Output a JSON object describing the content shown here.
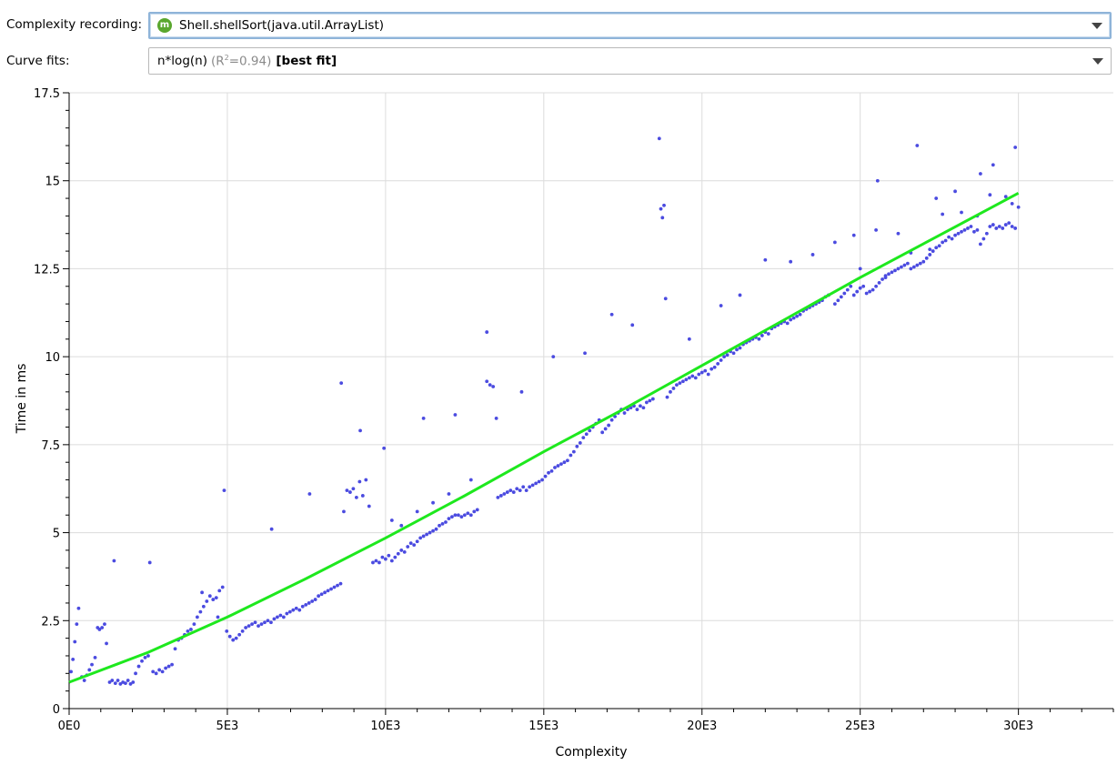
{
  "toolbar": {
    "recording_label": "Complexity recording:",
    "recording_value": "Shell.shellSort(java.util.ArrayList)",
    "recording_icon": "m-icon",
    "curvefit_label": "Curve fits:",
    "curvefit_name": "n*log(n)",
    "curvefit_r2_prefix": "(R",
    "curvefit_r2_exp": "2",
    "curvefit_r2_value": "=0.94)",
    "curvefit_tag": "[best fit]"
  },
  "chart_data": {
    "type": "scatter",
    "xlabel": "Complexity",
    "ylabel": "Time in ms",
    "xlim": [
      0,
      33000
    ],
    "ylim": [
      0,
      17.5
    ],
    "x_ticks": [
      0,
      5000,
      10000,
      15000,
      20000,
      25000,
      30000
    ],
    "x_tick_labels": [
      "0E0",
      "5E3",
      "10E3",
      "15E3",
      "20E3",
      "25E3",
      "30E3"
    ],
    "y_ticks": [
      0,
      2.5,
      5,
      7.5,
      10,
      12.5,
      15,
      17.5
    ],
    "y_tick_labels": [
      "0",
      "2.5",
      "5",
      "7.5",
      "10",
      "12.5",
      "15",
      "17.5"
    ],
    "grid": true,
    "colors": {
      "points": "#4b4be0",
      "fit": "#1ee81e"
    },
    "fit_line": {
      "x": [
        0,
        2500,
        5000,
        7500,
        10000,
        12500,
        15000,
        17500,
        20000,
        22500,
        25000,
        27500,
        30000
      ],
      "y": [
        0.75,
        1.6,
        2.6,
        3.7,
        4.85,
        6.05,
        7.3,
        8.5,
        9.75,
        11.0,
        12.25,
        13.45,
        14.65
      ]
    },
    "points": [
      [
        60,
        1.05
      ],
      [
        120,
        1.4
      ],
      [
        180,
        1.9
      ],
      [
        240,
        2.4
      ],
      [
        300,
        2.85
      ],
      [
        400,
        0.9
      ],
      [
        480,
        0.8
      ],
      [
        560,
        0.95
      ],
      [
        640,
        1.1
      ],
      [
        720,
        1.25
      ],
      [
        820,
        1.45
      ],
      [
        900,
        2.3
      ],
      [
        960,
        2.25
      ],
      [
        1040,
        2.3
      ],
      [
        1120,
        2.4
      ],
      [
        1180,
        1.85
      ],
      [
        1280,
        0.75
      ],
      [
        1360,
        0.8
      ],
      [
        1460,
        0.72
      ],
      [
        1540,
        0.8
      ],
      [
        1620,
        0.7
      ],
      [
        1700,
        0.75
      ],
      [
        1780,
        0.72
      ],
      [
        1860,
        0.8
      ],
      [
        1940,
        0.7
      ],
      [
        2020,
        0.75
      ],
      [
        2100,
        1.0
      ],
      [
        2200,
        1.2
      ],
      [
        2300,
        1.35
      ],
      [
        2400,
        1.45
      ],
      [
        2500,
        1.5
      ],
      [
        2650,
        1.05
      ],
      [
        2750,
        1.0
      ],
      [
        2850,
        1.1
      ],
      [
        2950,
        1.05
      ],
      [
        3050,
        1.15
      ],
      [
        3150,
        1.2
      ],
      [
        3250,
        1.25
      ],
      [
        3350,
        1.7
      ],
      [
        3450,
        1.95
      ],
      [
        3550,
        2.0
      ],
      [
        3650,
        2.1
      ],
      [
        3750,
        2.2
      ],
      [
        3850,
        2.25
      ],
      [
        3950,
        2.4
      ],
      [
        4050,
        2.6
      ],
      [
        4150,
        2.75
      ],
      [
        4250,
        2.9
      ],
      [
        4350,
        3.05
      ],
      [
        4450,
        3.2
      ],
      [
        4550,
        3.1
      ],
      [
        4650,
        3.15
      ],
      [
        4750,
        3.35
      ],
      [
        4850,
        3.45
      ],
      [
        1420,
        4.2
      ],
      [
        2550,
        4.15
      ],
      [
        4200,
        3.3
      ],
      [
        4700,
        2.6
      ],
      [
        4900,
        6.2
      ],
      [
        6400,
        5.1
      ],
      [
        7600,
        6.1
      ],
      [
        8600,
        9.25
      ],
      [
        9200,
        7.9
      ],
      [
        9950,
        7.4
      ],
      [
        11200,
        8.25
      ],
      [
        12200,
        8.35
      ],
      [
        13200,
        10.7
      ],
      [
        14300,
        9.0
      ],
      [
        15300,
        10.0
      ],
      [
        16300,
        10.1
      ],
      [
        17150,
        11.2
      ],
      [
        17800,
        10.9
      ],
      [
        18650,
        16.2
      ],
      [
        18700,
        14.2
      ],
      [
        18750,
        13.95
      ],
      [
        18800,
        14.3
      ],
      [
        18850,
        11.65
      ],
      [
        19600,
        10.5
      ],
      [
        20600,
        11.45
      ],
      [
        21200,
        11.75
      ],
      [
        22000,
        12.75
      ],
      [
        22800,
        12.7
      ],
      [
        23500,
        12.9
      ],
      [
        24200,
        13.25
      ],
      [
        24800,
        13.45
      ],
      [
        25500,
        13.6
      ],
      [
        25550,
        15.0
      ],
      [
        26200,
        13.5
      ],
      [
        26800,
        16.0
      ],
      [
        27400,
        14.5
      ],
      [
        28000,
        14.7
      ],
      [
        28800,
        15.2
      ],
      [
        29200,
        15.45
      ],
      [
        29900,
        15.95
      ],
      [
        4980,
        2.2
      ],
      [
        5080,
        2.05
      ],
      [
        5180,
        1.95
      ],
      [
        5280,
        2.0
      ],
      [
        5380,
        2.1
      ],
      [
        5480,
        2.2
      ],
      [
        5580,
        2.3
      ],
      [
        5680,
        2.35
      ],
      [
        5780,
        2.4
      ],
      [
        5880,
        2.45
      ],
      [
        5980,
        2.35
      ],
      [
        6080,
        2.4
      ],
      [
        6180,
        2.45
      ],
      [
        6280,
        2.5
      ],
      [
        6380,
        2.45
      ],
      [
        6480,
        2.55
      ],
      [
        6580,
        2.6
      ],
      [
        6680,
        2.65
      ],
      [
        6780,
        2.6
      ],
      [
        6880,
        2.7
      ],
      [
        6980,
        2.75
      ],
      [
        7080,
        2.8
      ],
      [
        7180,
        2.85
      ],
      [
        7280,
        2.8
      ],
      [
        7380,
        2.9
      ],
      [
        7480,
        2.95
      ],
      [
        7580,
        3.0
      ],
      [
        7680,
        3.05
      ],
      [
        7780,
        3.1
      ],
      [
        7880,
        3.2
      ],
      [
        7980,
        3.25
      ],
      [
        8080,
        3.3
      ],
      [
        8180,
        3.35
      ],
      [
        8280,
        3.4
      ],
      [
        8380,
        3.45
      ],
      [
        8480,
        3.5
      ],
      [
        8580,
        3.55
      ],
      [
        8680,
        5.6
      ],
      [
        8780,
        6.2
      ],
      [
        8880,
        6.15
      ],
      [
        8980,
        6.25
      ],
      [
        9080,
        6.0
      ],
      [
        9180,
        6.45
      ],
      [
        9280,
        6.05
      ],
      [
        9380,
        6.5
      ],
      [
        9480,
        5.75
      ],
      [
        9600,
        4.15
      ],
      [
        9700,
        4.2
      ],
      [
        9800,
        4.15
      ],
      [
        9900,
        4.3
      ],
      [
        10000,
        4.25
      ],
      [
        10100,
        4.35
      ],
      [
        10200,
        4.2
      ],
      [
        10300,
        4.3
      ],
      [
        10400,
        4.4
      ],
      [
        10500,
        4.5
      ],
      [
        10600,
        4.45
      ],
      [
        10700,
        4.6
      ],
      [
        10800,
        4.7
      ],
      [
        10900,
        4.65
      ],
      [
        11000,
        4.75
      ],
      [
        11100,
        4.85
      ],
      [
        11200,
        4.9
      ],
      [
        11300,
        4.95
      ],
      [
        11400,
        5.0
      ],
      [
        11500,
        5.05
      ],
      [
        11600,
        5.1
      ],
      [
        11700,
        5.2
      ],
      [
        11800,
        5.25
      ],
      [
        11900,
        5.3
      ],
      [
        12000,
        5.4
      ],
      [
        12100,
        5.45
      ],
      [
        12200,
        5.5
      ],
      [
        12300,
        5.5
      ],
      [
        12400,
        5.45
      ],
      [
        12500,
        5.5
      ],
      [
        12600,
        5.55
      ],
      [
        12700,
        5.5
      ],
      [
        12800,
        5.6
      ],
      [
        12900,
        5.65
      ],
      [
        10200,
        5.35
      ],
      [
        10500,
        5.2
      ],
      [
        11000,
        5.6
      ],
      [
        11500,
        5.85
      ],
      [
        12000,
        6.1
      ],
      [
        12700,
        6.5
      ],
      [
        13200,
        9.3
      ],
      [
        13300,
        9.2
      ],
      [
        13400,
        9.15
      ],
      [
        13500,
        8.25
      ],
      [
        13550,
        6.0
      ],
      [
        13650,
        6.05
      ],
      [
        13750,
        6.1
      ],
      [
        13850,
        6.15
      ],
      [
        13950,
        6.2
      ],
      [
        14050,
        6.15
      ],
      [
        14150,
        6.25
      ],
      [
        14250,
        6.2
      ],
      [
        14350,
        6.3
      ],
      [
        14450,
        6.2
      ],
      [
        14550,
        6.3
      ],
      [
        14650,
        6.35
      ],
      [
        14750,
        6.4
      ],
      [
        14850,
        6.45
      ],
      [
        14950,
        6.5
      ],
      [
        15050,
        6.6
      ],
      [
        15150,
        6.7
      ],
      [
        15250,
        6.75
      ],
      [
        15350,
        6.85
      ],
      [
        15450,
        6.9
      ],
      [
        15550,
        6.95
      ],
      [
        15650,
        7.0
      ],
      [
        15750,
        7.05
      ],
      [
        15850,
        7.2
      ],
      [
        15950,
        7.3
      ],
      [
        16050,
        7.45
      ],
      [
        16150,
        7.55
      ],
      [
        16250,
        7.7
      ],
      [
        16350,
        7.8
      ],
      [
        16450,
        7.9
      ],
      [
        16550,
        8.0
      ],
      [
        16650,
        8.1
      ],
      [
        16750,
        8.2
      ],
      [
        16850,
        7.85
      ],
      [
        16950,
        7.95
      ],
      [
        17050,
        8.05
      ],
      [
        17150,
        8.2
      ],
      [
        17250,
        8.3
      ],
      [
        17350,
        8.4
      ],
      [
        17450,
        8.5
      ],
      [
        17550,
        8.4
      ],
      [
        17650,
        8.5
      ],
      [
        17750,
        8.55
      ],
      [
        17850,
        8.6
      ],
      [
        17950,
        8.5
      ],
      [
        18050,
        8.6
      ],
      [
        18150,
        8.55
      ],
      [
        18250,
        8.7
      ],
      [
        18350,
        8.75
      ],
      [
        18450,
        8.8
      ],
      [
        18900,
        8.85
      ],
      [
        19000,
        9.0
      ],
      [
        19100,
        9.1
      ],
      [
        19200,
        9.2
      ],
      [
        19300,
        9.25
      ],
      [
        19400,
        9.3
      ],
      [
        19500,
        9.35
      ],
      [
        19600,
        9.4
      ],
      [
        19700,
        9.45
      ],
      [
        19800,
        9.4
      ],
      [
        19900,
        9.5
      ],
      [
        20000,
        9.55
      ],
      [
        20100,
        9.6
      ],
      [
        20200,
        9.5
      ],
      [
        20300,
        9.65
      ],
      [
        20400,
        9.7
      ],
      [
        20500,
        9.8
      ],
      [
        20600,
        9.9
      ],
      [
        20700,
        10.0
      ],
      [
        20800,
        10.05
      ],
      [
        20900,
        10.15
      ],
      [
        21000,
        10.1
      ],
      [
        21100,
        10.2
      ],
      [
        21200,
        10.25
      ],
      [
        21300,
        10.35
      ],
      [
        21400,
        10.4
      ],
      [
        21500,
        10.45
      ],
      [
        21600,
        10.5
      ],
      [
        21700,
        10.55
      ],
      [
        21800,
        10.5
      ],
      [
        21900,
        10.6
      ],
      [
        22000,
        10.7
      ],
      [
        22100,
        10.65
      ],
      [
        22200,
        10.8
      ],
      [
        22300,
        10.85
      ],
      [
        22400,
        10.9
      ],
      [
        22500,
        10.95
      ],
      [
        22600,
        11.0
      ],
      [
        22700,
        10.95
      ],
      [
        22800,
        11.05
      ],
      [
        22900,
        11.1
      ],
      [
        23000,
        11.15
      ],
      [
        23100,
        11.2
      ],
      [
        23200,
        11.3
      ],
      [
        23300,
        11.35
      ],
      [
        23400,
        11.4
      ],
      [
        23500,
        11.45
      ],
      [
        23600,
        11.5
      ],
      [
        23700,
        11.55
      ],
      [
        23800,
        11.6
      ],
      [
        23900,
        11.7
      ],
      [
        24000,
        11.75
      ],
      [
        24200,
        11.5
      ],
      [
        24300,
        11.6
      ],
      [
        24400,
        11.7
      ],
      [
        24500,
        11.8
      ],
      [
        24600,
        11.9
      ],
      [
        24700,
        12.0
      ],
      [
        24800,
        11.75
      ],
      [
        24900,
        11.85
      ],
      [
        25000,
        11.95
      ],
      [
        25100,
        12.0
      ],
      [
        25200,
        11.8
      ],
      [
        25300,
        11.85
      ],
      [
        25400,
        11.9
      ],
      [
        25500,
        12.0
      ],
      [
        25600,
        12.1
      ],
      [
        25700,
        12.2
      ],
      [
        25800,
        12.25
      ],
      [
        25900,
        12.35
      ],
      [
        26000,
        12.4
      ],
      [
        26100,
        12.45
      ],
      [
        26200,
        12.5
      ],
      [
        26300,
        12.55
      ],
      [
        26400,
        12.6
      ],
      [
        26500,
        12.65
      ],
      [
        26600,
        12.5
      ],
      [
        26700,
        12.55
      ],
      [
        26800,
        12.6
      ],
      [
        26900,
        12.65
      ],
      [
        27000,
        12.7
      ],
      [
        27100,
        12.8
      ],
      [
        27200,
        12.9
      ],
      [
        27300,
        13.0
      ],
      [
        27400,
        13.1
      ],
      [
        27500,
        13.15
      ],
      [
        27600,
        13.25
      ],
      [
        27700,
        13.3
      ],
      [
        27800,
        13.4
      ],
      [
        27900,
        13.35
      ],
      [
        28000,
        13.45
      ],
      [
        28100,
        13.5
      ],
      [
        28200,
        13.55
      ],
      [
        28300,
        13.6
      ],
      [
        28400,
        13.65
      ],
      [
        28500,
        13.7
      ],
      [
        28600,
        13.55
      ],
      [
        28700,
        13.6
      ],
      [
        28800,
        13.2
      ],
      [
        28900,
        13.35
      ],
      [
        29000,
        13.5
      ],
      [
        29100,
        13.7
      ],
      [
        29200,
        13.75
      ],
      [
        29300,
        13.65
      ],
      [
        29400,
        13.7
      ],
      [
        29500,
        13.65
      ],
      [
        29600,
        13.75
      ],
      [
        29700,
        13.8
      ],
      [
        29800,
        13.7
      ],
      [
        29900,
        13.65
      ],
      [
        30000,
        14.25
      ],
      [
        25000,
        12.5
      ],
      [
        25800,
        12.3
      ],
      [
        26600,
        12.95
      ],
      [
        27200,
        13.05
      ],
      [
        27600,
        14.05
      ],
      [
        28200,
        14.1
      ],
      [
        28700,
        14.0
      ],
      [
        29100,
        14.6
      ],
      [
        29600,
        14.55
      ],
      [
        29800,
        14.35
      ]
    ]
  }
}
